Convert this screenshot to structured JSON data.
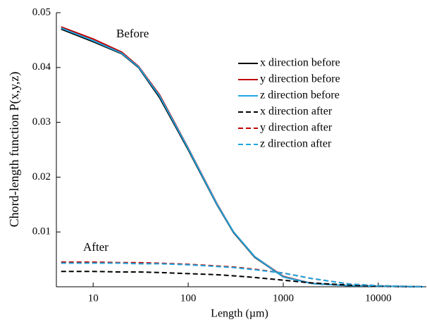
{
  "chart_data": {
    "type": "line",
    "xlabel": "Length (µm)",
    "ylabel": "Chord-length function P(x,y,z)",
    "annotations": [
      "Before",
      "After"
    ],
    "x": [
      4.6,
      10,
      20,
      30,
      50,
      100,
      200,
      300,
      500,
      1000,
      2000,
      5000,
      10000,
      30000
    ],
    "series": [
      {
        "name": "x direction before",
        "color": "#000000",
        "dash": false,
        "values": [
          0.047,
          0.0447,
          0.0425,
          0.04,
          0.0345,
          0.025,
          0.015,
          0.0099,
          0.0054,
          0.0018,
          0.0006,
          0.0002,
          0.0001,
          0
        ]
      },
      {
        "name": "y direction before",
        "color": "#c00000",
        "dash": false,
        "values": [
          0.0474,
          0.0452,
          0.0428,
          0.0402,
          0.035,
          0.0253,
          0.0152,
          0.01,
          0.0055,
          0.0019,
          0.0006,
          0.0002,
          0.0001,
          0
        ]
      },
      {
        "name": "z direction before",
        "color": "#1ea7e1",
        "dash": false,
        "values": [
          0.0472,
          0.0449,
          0.0426,
          0.0401,
          0.0348,
          0.0252,
          0.0151,
          0.01,
          0.0055,
          0.0018,
          0.0006,
          0.0002,
          0.0001,
          0
        ]
      },
      {
        "name": "x direction after",
        "color": "#000000",
        "dash": true,
        "values": [
          0.0028,
          0.0028,
          0.0027,
          0.0027,
          0.0026,
          0.0024,
          0.0022,
          0.002,
          0.0017,
          0.0012,
          0.0007,
          0.0003,
          0.0001,
          0
        ]
      },
      {
        "name": "y direction after",
        "color": "#c00000",
        "dash": true,
        "values": [
          0.0045,
          0.0045,
          0.0044,
          0.0044,
          0.0043,
          0.0041,
          0.0038,
          0.0036,
          0.0032,
          0.0025,
          0.0015,
          0.0005,
          0.0002,
          0
        ]
      },
      {
        "name": "z direction after",
        "color": "#1ea7e1",
        "dash": true,
        "values": [
          0.0043,
          0.0043,
          0.0043,
          0.0042,
          0.0042,
          0.004,
          0.0037,
          0.0035,
          0.0031,
          0.0025,
          0.0015,
          0.0005,
          0.0002,
          0
        ]
      }
    ],
    "xscale": "log",
    "xlim": [
      4.1,
      32000
    ],
    "xticks": [
      10,
      100,
      1000,
      10000
    ],
    "ylim": [
      0,
      0.05
    ],
    "yticks": [
      0.01,
      0.02,
      0.03,
      0.04,
      0.05
    ],
    "legend": "upper right"
  }
}
